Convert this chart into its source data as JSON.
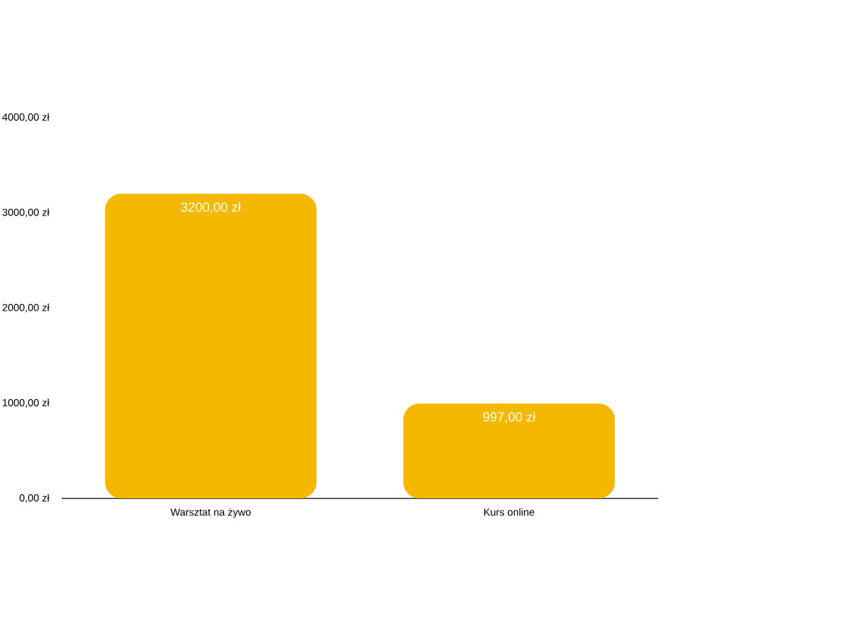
{
  "chart_data": {
    "type": "bar",
    "categories": [
      "Warsztat na żywo",
      "Kurs online"
    ],
    "values": [
      3200,
      997
    ],
    "color": "#f5b800",
    "value_labels": [
      "3200,00 zł",
      "997,00 zł"
    ],
    "ylim": [
      0,
      4000
    ],
    "yticks": [
      {
        "value": 0,
        "label": "0,00 zł"
      },
      {
        "value": 1000,
        "label": "1000,00 zł"
      },
      {
        "value": 2000,
        "label": "2000,00 zł"
      },
      {
        "value": 3000,
        "label": "3000,00 zł"
      },
      {
        "value": 4000,
        "label": "4000,00 zł"
      }
    ]
  }
}
